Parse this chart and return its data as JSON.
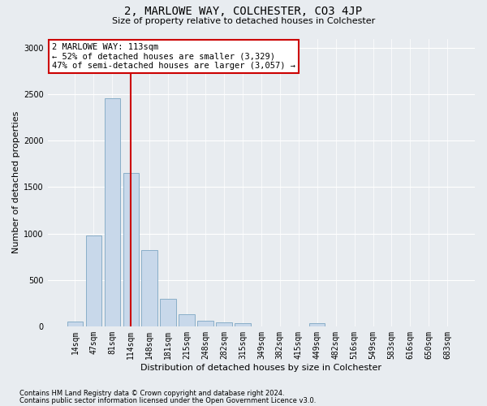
{
  "title": "2, MARLOWE WAY, COLCHESTER, CO3 4JP",
  "subtitle": "Size of property relative to detached houses in Colchester",
  "xlabel": "Distribution of detached houses by size in Colchester",
  "ylabel": "Number of detached properties",
  "property_label": "2 MARLOWE WAY: 113sqm",
  "annotation_line1": "← 52% of detached houses are smaller (3,329)",
  "annotation_line2": "47% of semi-detached houses are larger (3,057) →",
  "bin_labels": [
    "14sqm",
    "47sqm",
    "81sqm",
    "114sqm",
    "148sqm",
    "181sqm",
    "215sqm",
    "248sqm",
    "282sqm",
    "315sqm",
    "349sqm",
    "382sqm",
    "415sqm",
    "449sqm",
    "482sqm",
    "516sqm",
    "549sqm",
    "583sqm",
    "616sqm",
    "650sqm",
    "683sqm"
  ],
  "bar_values": [
    55,
    980,
    2460,
    1650,
    820,
    295,
    130,
    60,
    40,
    30,
    0,
    0,
    0,
    35,
    0,
    0,
    0,
    0,
    0,
    0,
    0
  ],
  "bar_color": "#c8d8ea",
  "bar_edge_color": "#89aec8",
  "vline_color": "#cc0000",
  "vline_x": 2.98,
  "ylim": [
    0,
    3100
  ],
  "yticks": [
    0,
    500,
    1000,
    1500,
    2000,
    2500,
    3000
  ],
  "footnote1": "Contains HM Land Registry data © Crown copyright and database right 2024.",
  "footnote2": "Contains public sector information licensed under the Open Government Licence v3.0.",
  "bg_color": "#e8ecf0",
  "plot_bg_color": "#e8ecf0",
  "annotation_box_color": "#ffffff",
  "annotation_box_edge": "#cc0000",
  "grid_color": "#ffffff",
  "title_fontsize": 10,
  "subtitle_fontsize": 8,
  "ylabel_fontsize": 8,
  "xlabel_fontsize": 8,
  "tick_fontsize": 7,
  "annot_fontsize": 7.5
}
